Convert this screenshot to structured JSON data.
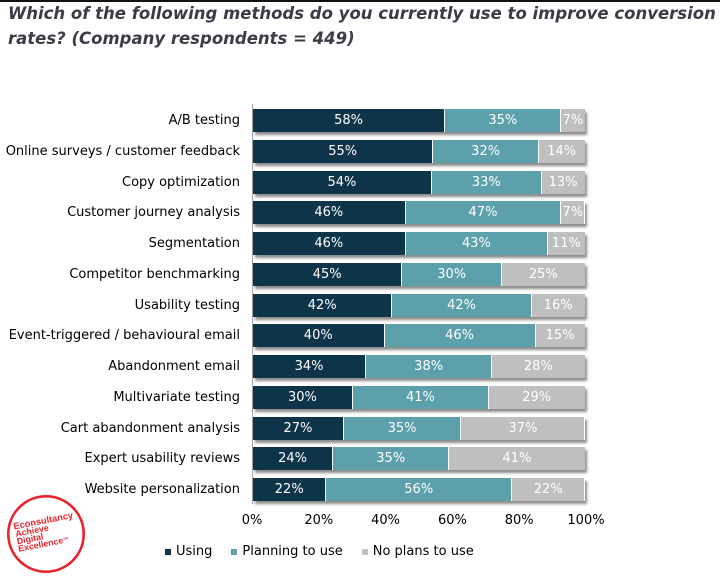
{
  "title": "Which of the following methods do you currently use to improve conversion rates? (Company respondents = 449)",
  "chart_data": {
    "type": "bar",
    "orientation": "horizontal",
    "stacked": true,
    "title": "Which of the following methods do you currently use to improve conversion rates? (Company respondents = 449)",
    "categories": [
      "A/B testing",
      "Online surveys / customer feedback",
      "Copy optimization",
      "Customer journey analysis",
      "Segmentation",
      "Competitor benchmarking",
      "Usability testing",
      "Event-triggered / behavioural email",
      "Abandonment email",
      "Multivariate testing",
      "Cart abandonment analysis",
      "Expert usability reviews",
      "Website personalization"
    ],
    "series": [
      {
        "name": "Using",
        "color": "#0e3449",
        "values": [
          58,
          55,
          54,
          46,
          46,
          45,
          42,
          40,
          34,
          30,
          27,
          24,
          22
        ]
      },
      {
        "name": "Planning to use",
        "color": "#5ba0ab",
        "values": [
          35,
          32,
          33,
          47,
          43,
          30,
          42,
          46,
          38,
          41,
          35,
          35,
          56
        ]
      },
      {
        "name": "No plans to use",
        "color": "#bfbfbf",
        "values": [
          7,
          14,
          13,
          7,
          11,
          25,
          16,
          15,
          28,
          29,
          37,
          41,
          22
        ]
      }
    ],
    "value_suffix": "%",
    "x_ticks": [
      "0%",
      "20%",
      "40%",
      "60%",
      "80%",
      "100%"
    ],
    "xlim": [
      0,
      100
    ],
    "grid": false,
    "legend_position": "bottom"
  },
  "logo": {
    "brand": "Econsultancy",
    "tagline_line1": "Achieve",
    "tagline_line2": "Digital",
    "tagline_line3": "Excellence",
    "trademark": "™",
    "color": "#e8232b"
  },
  "colors": {
    "using": "#0e3449",
    "planning": "#5ba0ab",
    "no_plans": "#bfbfbf",
    "title_text": "#3c3c46",
    "axis_line": "#a6a6a6",
    "top_rule": "#111111"
  }
}
